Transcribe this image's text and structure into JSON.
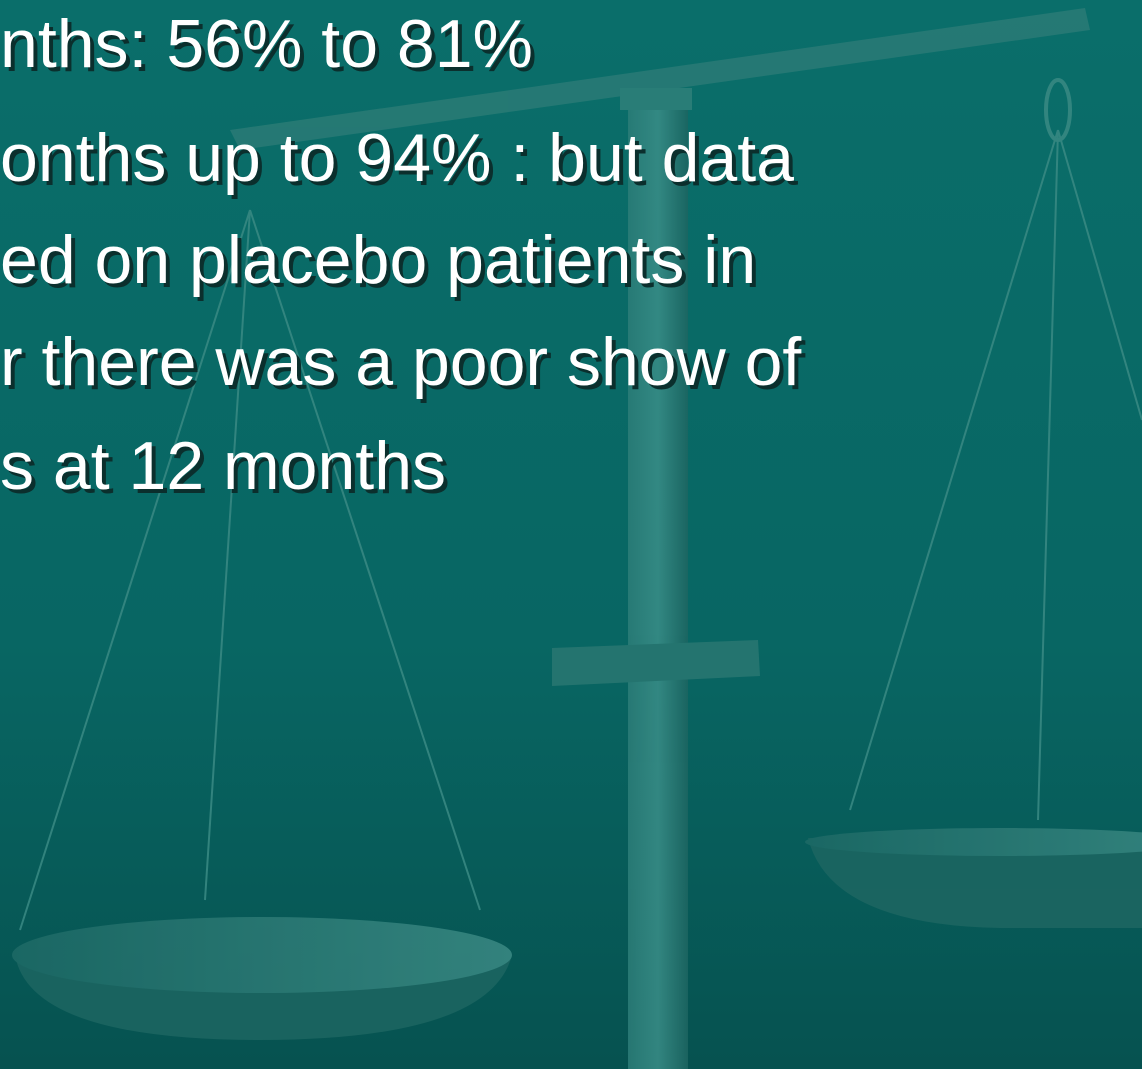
{
  "lines": [
    "nths: 56% to 81%",
    "onths up to 94% : but data",
    "ed on placebo patients in",
    "r there was a poor show of",
    "s at 12 months"
  ]
}
